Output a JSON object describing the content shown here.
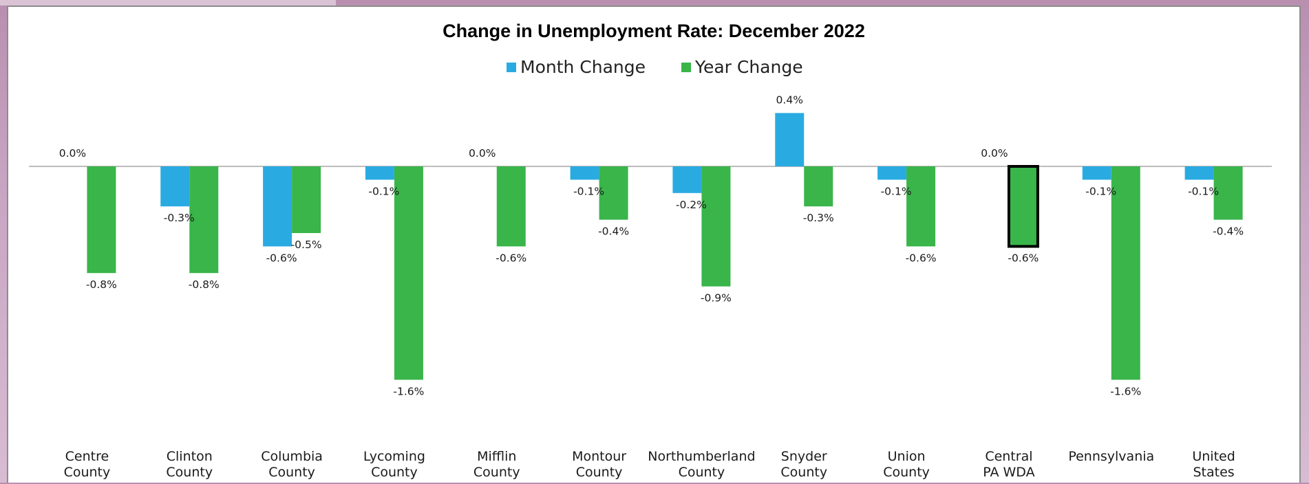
{
  "chart_data": {
    "type": "bar",
    "title": "Change in Unemployment Rate: December 2022",
    "xlabel": "",
    "ylabel": "",
    "legend_position": "top",
    "grid": false,
    "ylim": [
      -1.6,
      0.4
    ],
    "categories": [
      [
        "Centre",
        "County"
      ],
      [
        "Clinton",
        "County"
      ],
      [
        "Columbia",
        "County"
      ],
      [
        "Lycoming",
        "County"
      ],
      [
        "Mifflin",
        "County"
      ],
      [
        "Montour",
        "County"
      ],
      [
        "Northumberland",
        "County"
      ],
      [
        "Snyder",
        "County"
      ],
      [
        "Union",
        "County"
      ],
      [
        "Central",
        "PA WDA"
      ],
      [
        "Pennsylvania"
      ],
      [
        "United",
        "States"
      ]
    ],
    "series": [
      {
        "name": "Month Change",
        "color": "#29abe2",
        "values": [
          0.0,
          -0.3,
          -0.6,
          -0.1,
          0.0,
          -0.1,
          -0.2,
          0.4,
          -0.1,
          0.0,
          -0.1,
          -0.1
        ],
        "labels": [
          "0.0%",
          "-0.3%",
          "-0.6%",
          "-0.1%",
          "0.0%",
          "-0.1%",
          "-0.2%",
          "0.4%",
          "-0.1%",
          "0.0%",
          "-0.1%",
          "-0.1%"
        ]
      },
      {
        "name": "Year Change",
        "color": "#39b54a",
        "values": [
          -0.8,
          -0.8,
          -0.5,
          -1.6,
          -0.6,
          -0.4,
          -0.9,
          -0.3,
          -0.6,
          -0.6,
          -1.6,
          -0.4
        ],
        "labels": [
          "-0.8%",
          "-0.8%",
          "-0.5%",
          "-1.6%",
          "-0.6%",
          "-0.4%",
          "-0.9%",
          "-0.3%",
          "-0.6%",
          "-0.6%",
          "-1.6%",
          "-0.4%"
        ]
      }
    ],
    "highlighted_bar": {
      "series": 1,
      "category": 9
    }
  }
}
